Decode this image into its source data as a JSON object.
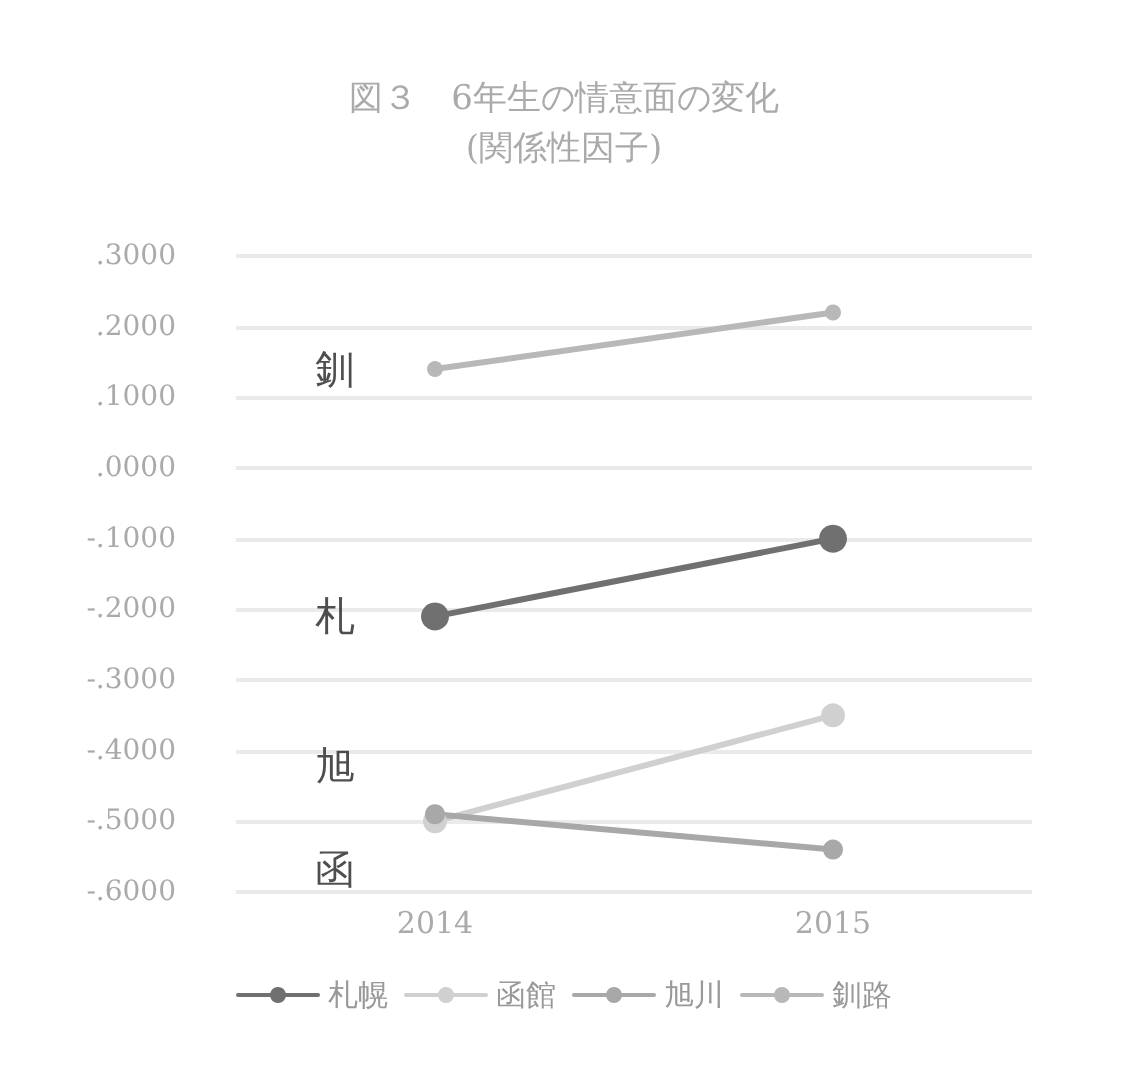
{
  "chart_data": {
    "type": "line",
    "title": "図３　6年生の情意面の変化",
    "subtitle": "(関係性因子)",
    "categories": [
      "2014",
      "2015"
    ],
    "series": [
      {
        "name": "札幌",
        "color": "#707070",
        "values": [
          -0.21,
          -0.1
        ]
      },
      {
        "name": "函館",
        "color": "#d0d0d0",
        "values": [
          -0.5,
          -0.35
        ]
      },
      {
        "name": "旭川",
        "color": "#a8a8a8",
        "values": [
          -0.49,
          -0.54
        ]
      },
      {
        "name": "釧路",
        "color": "#b8b8b8",
        "values": [
          0.14,
          0.22
        ]
      }
    ],
    "ylim": [
      -0.6,
      0.3
    ],
    "yticks": [
      {
        "value": 0.3,
        "label": ".3000"
      },
      {
        "value": 0.2,
        "label": ".2000"
      },
      {
        "value": 0.1,
        "label": ".1000"
      },
      {
        "value": 0,
        "label": ".0000"
      },
      {
        "value": -0.1,
        "label": "-.1000"
      },
      {
        "value": -0.2,
        "label": "-.2000"
      },
      {
        "value": -0.3,
        "label": "-.3000"
      },
      {
        "value": -0.4,
        "label": "-.4000"
      },
      {
        "value": -0.5,
        "label": "-.5000"
      },
      {
        "value": -0.6,
        "label": "-.6000"
      }
    ],
    "annotations": [
      {
        "text": "釧",
        "x": "2014",
        "y": 0.14
      },
      {
        "text": "札",
        "x": "2014",
        "y": -0.21
      },
      {
        "text": "旭",
        "x": "2014",
        "y": -0.49
      },
      {
        "text": "函",
        "x": "2014",
        "y": -0.5
      }
    ],
    "grid": "y",
    "legend": "bottom",
    "marker": "circle",
    "line_style": "solid"
  }
}
